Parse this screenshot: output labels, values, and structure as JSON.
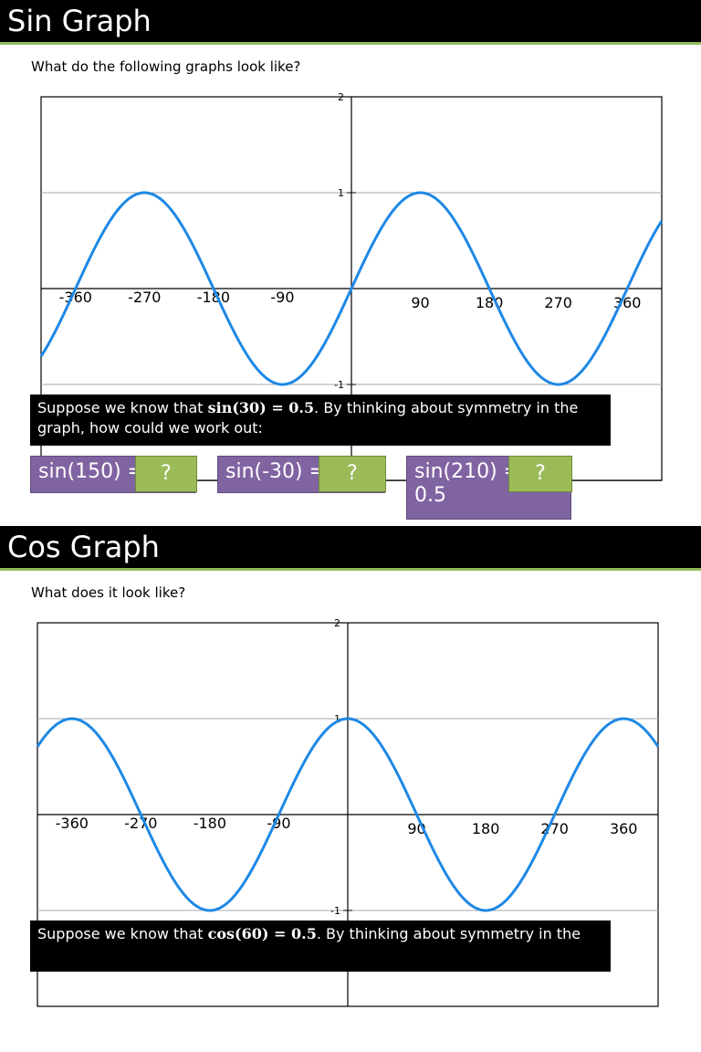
{
  "sin_slide": {
    "title": "Sin Graph",
    "subtitle": "What do the following graphs look like?",
    "callout_pre": "Suppose we know that ",
    "callout_math": "sin(30) = 0.5",
    "callout_post": ". By thinking about symmetry in the graph, how could we work out:",
    "questions": [
      {
        "label": "sin(150) =",
        "answer": "?"
      },
      {
        "label": "sin(-30) =",
        "answer": "?"
      },
      {
        "label": "sin(210) =",
        "answer": "?",
        "extra": "0.5"
      }
    ]
  },
  "cos_slide": {
    "title": "Cos Graph",
    "subtitle": "What does it look like?",
    "callout_pre": "Suppose we know that ",
    "callout_math": "cos(60) = 0.5",
    "callout_post": ". By thinking about symmetry in the"
  },
  "chart_data": [
    {
      "type": "line",
      "function": "sin",
      "x_tick_labels": [
        "-360",
        "-270",
        "-180",
        "-90",
        "90",
        "180",
        "270",
        "360"
      ],
      "y_tick_labels": [
        "2",
        "1",
        "-1"
      ],
      "xlim": [
        -405,
        405
      ],
      "ylim": [
        -2,
        2
      ],
      "series_color": "#1e88e5"
    },
    {
      "type": "line",
      "function": "cos",
      "x_tick_labels": [
        "-360",
        "-270",
        "-180",
        "-90",
        "90",
        "180",
        "270",
        "360"
      ],
      "y_tick_labels": [
        "2",
        "1",
        "-1"
      ],
      "xlim": [
        -405,
        405
      ],
      "ylim": [
        -2,
        2
      ],
      "series_color": "#1e88e5"
    }
  ]
}
